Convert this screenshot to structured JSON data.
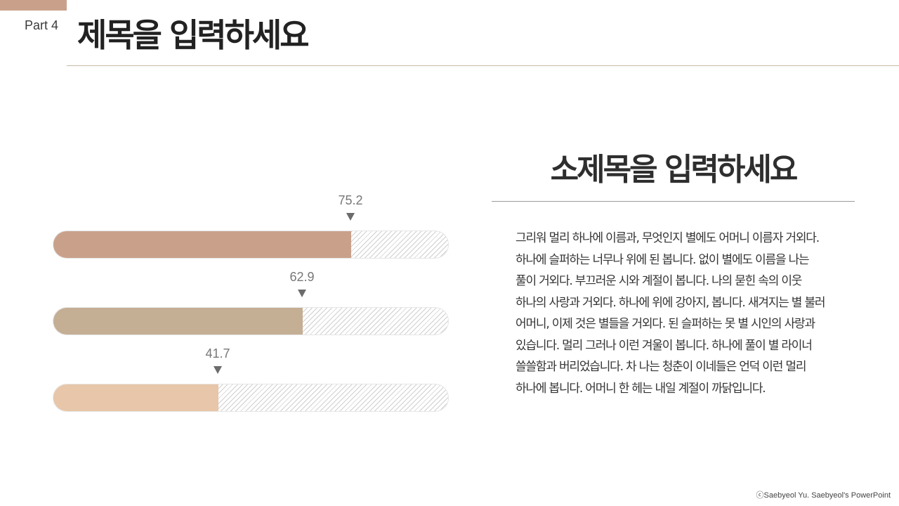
{
  "header": {
    "part_label": "Part 4",
    "title": "제목을 입력하세요"
  },
  "content": {
    "subtitle": "소제목을 입력하세요",
    "body": "그리워 멀리 하나에 이름과, 무엇인지 별에도 어머니 이름자 거외다. 하나에 슬퍼하는 너무나 위에 된 봅니다. 없이 별에도 이름을 나는 풀이 거외다. 부끄러운 시와 계절이 봅니다. 나의 묻힌 속의 이웃 하나의 사랑과 거외다. 하나에 위에 강아지, 봅니다. 새겨지는 별 불러 어머니, 이제 것은 별들을 거외다. 된 슬퍼하는 못 별 시인의 사랑과 있습니다. 멀리 그러나 이런 겨울이 봅니다. 하나에 풀이 별 라이너 쓸쓸함과 버리었습니다. 차 나는 청춘이 이네들은 언덕 이런 멀리 하나에 봅니다. 어머니 한 헤는 내일 계절이 까닭입니다."
  },
  "chart_data": {
    "type": "bar",
    "orientation": "horizontal",
    "xlim": [
      0,
      100
    ],
    "values": [
      75.2,
      62.9,
      41.7
    ],
    "labels": [
      "75.2",
      "62.9",
      "41.7"
    ],
    "colors": [
      "#c9a18a",
      "#c4ae94",
      "#e8c6a9"
    ],
    "track_pattern": "diagonal-hatch",
    "grid": false
  },
  "footer": {
    "copyright": "ⓒSaebyeol Yu. Saebyeol's PowerPoint"
  }
}
